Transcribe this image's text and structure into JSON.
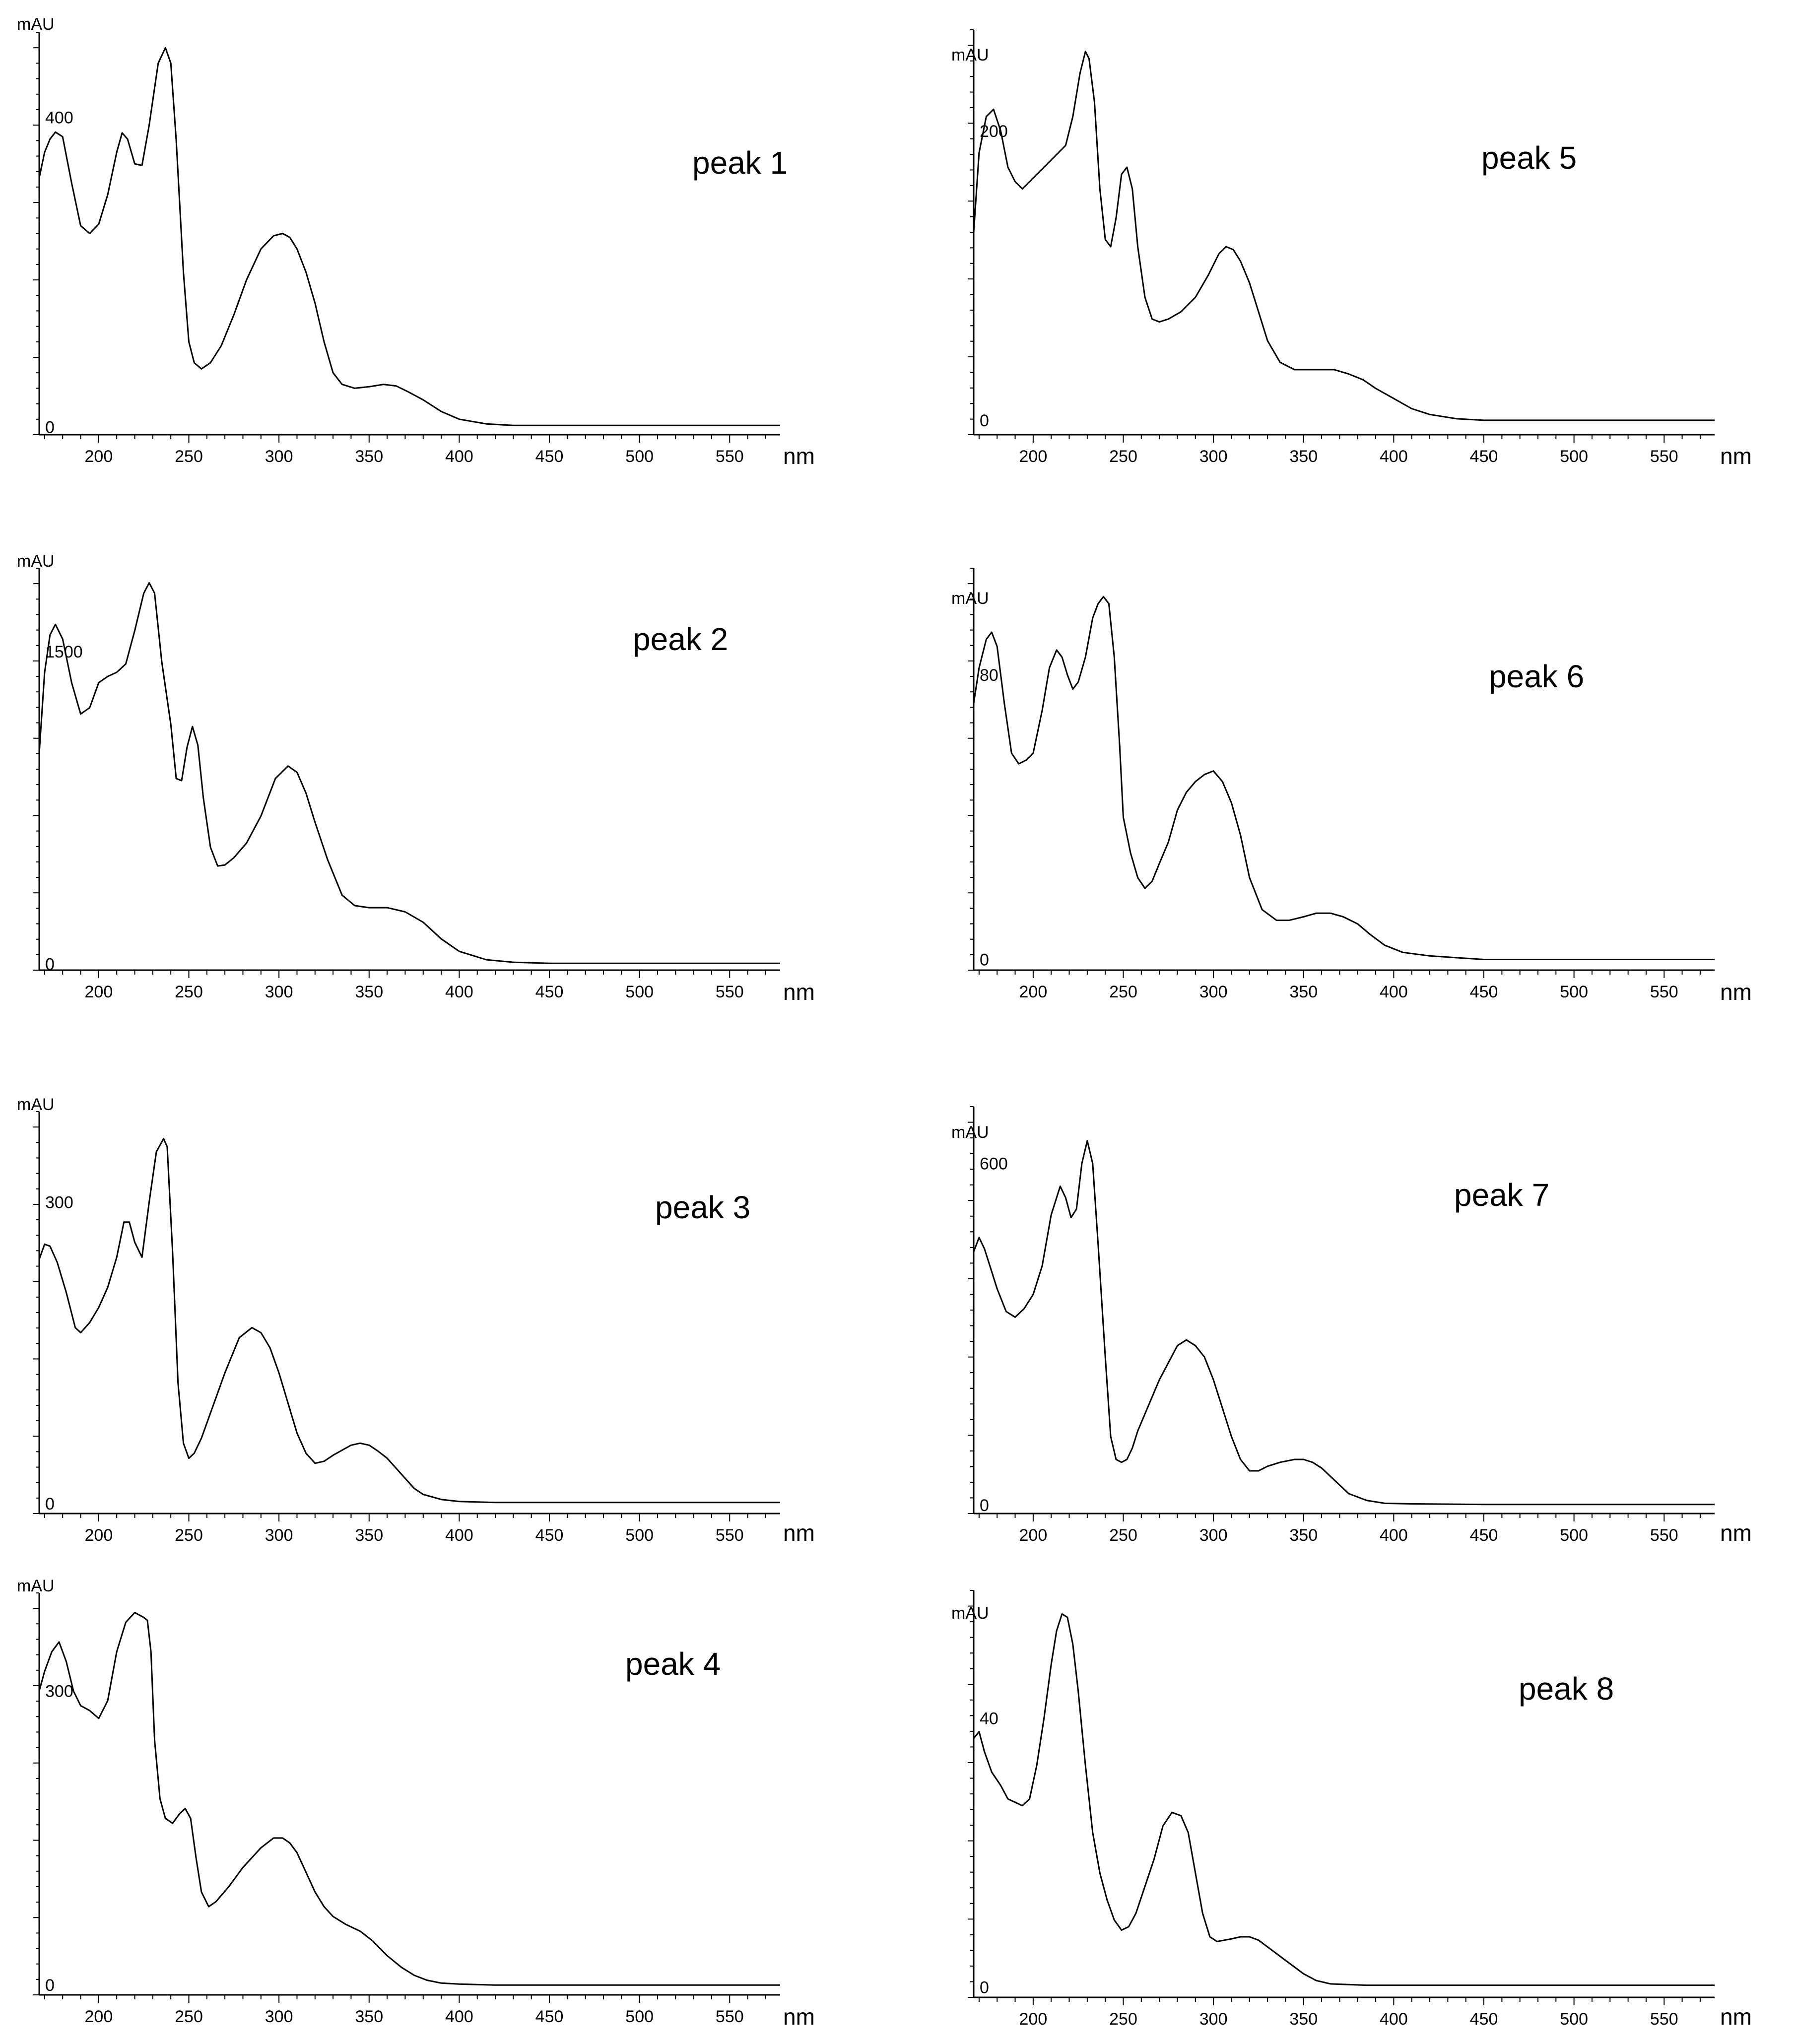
{
  "chart_data": [
    {
      "type": "line",
      "annotation": "peak 1",
      "ylabel": "mAU",
      "xlabel": "nm",
      "x_ticks": [
        200,
        250,
        300,
        350,
        400,
        450,
        500,
        550
      ],
      "y_tick_labels": [
        {
          "value": 0,
          "label": "0"
        },
        {
          "value": 400,
          "label": "400"
        }
      ],
      "xlim": [
        167,
        578
      ],
      "ylim": [
        -10,
        510
      ],
      "series": [
        {
          "x": [
            167,
            170,
            173,
            176,
            180,
            185,
            190,
            195,
            200,
            205,
            210,
            213,
            216,
            220,
            224,
            228,
            233,
            237,
            240,
            243,
            247,
            250,
            253,
            257,
            262,
            268,
            275,
            282,
            290,
            297,
            302,
            306,
            310,
            315,
            320,
            325,
            330,
            335,
            342,
            350,
            358,
            365,
            372,
            380,
            390,
            400,
            415,
            430,
            450,
            500,
            550,
            578
          ],
          "y": [
            322,
            355,
            372,
            381,
            375,
            315,
            260,
            250,
            262,
            300,
            355,
            380,
            372,
            340,
            338,
            390,
            470,
            490,
            470,
            370,
            200,
            110,
            83,
            75,
            83,
            105,
            145,
            190,
            230,
            247,
            250,
            245,
            230,
            200,
            160,
            110,
            70,
            55,
            50,
            52,
            55,
            53,
            45,
            35,
            20,
            10,
            4,
            2,
            2,
            2,
            2,
            2
          ]
        }
      ]
    },
    {
      "type": "line",
      "annotation": "peak 2",
      "ylabel": "mAU",
      "xlabel": "nm",
      "x_ticks": [
        200,
        250,
        300,
        350,
        400,
        450,
        500,
        550
      ],
      "y_tick_labels": [
        {
          "value": 0,
          "label": "0"
        },
        {
          "value": 1500,
          "label": "1500"
        }
      ],
      "xlim": [
        167,
        578
      ],
      "ylim": [
        -30,
        1900
      ],
      "series": [
        {
          "x": [
            167,
            170,
            173,
            176,
            180,
            185,
            190,
            195,
            200,
            205,
            210,
            215,
            220,
            225,
            228,
            231,
            235,
            240,
            243,
            246,
            249,
            252,
            255,
            258,
            262,
            266,
            270,
            275,
            282,
            290,
            298,
            305,
            310,
            315,
            320,
            327,
            335,
            342,
            350,
            360,
            370,
            380,
            390,
            400,
            415,
            430,
            450,
            500,
            550,
            578
          ],
          "y": [
            1010,
            1400,
            1580,
            1630,
            1560,
            1350,
            1200,
            1230,
            1350,
            1380,
            1400,
            1440,
            1600,
            1780,
            1830,
            1780,
            1450,
            1150,
            890,
            880,
            1040,
            1140,
            1050,
            800,
            560,
            470,
            475,
            510,
            580,
            710,
            890,
            950,
            920,
            820,
            680,
            500,
            330,
            280,
            270,
            270,
            250,
            200,
            120,
            60,
            20,
            8,
            3,
            3,
            3,
            3
          ]
        }
      ]
    },
    {
      "type": "line",
      "annotation": "peak 3",
      "ylabel": "mAU",
      "xlabel": "nm",
      "x_ticks": [
        200,
        250,
        300,
        350,
        400,
        450,
        500,
        550
      ],
      "y_tick_labels": [
        {
          "value": 0,
          "label": "0"
        },
        {
          "value": 300,
          "label": "300"
        }
      ],
      "xlim": [
        167,
        578
      ],
      "ylim": [
        -10,
        390
      ],
      "series": [
        {
          "x": [
            167,
            170,
            173,
            177,
            182,
            187,
            190,
            195,
            200,
            205,
            210,
            214,
            217,
            220,
            224,
            228,
            232,
            236,
            238,
            241,
            244,
            247,
            250,
            253,
            257,
            262,
            270,
            278,
            285,
            290,
            295,
            300,
            305,
            310,
            315,
            320,
            325,
            330,
            340,
            345,
            350,
            355,
            360,
            365,
            370,
            375,
            380,
            390,
            400,
            420,
            450,
            500,
            550,
            578
          ],
          "y": [
            243,
            258,
            256,
            240,
            210,
            175,
            170,
            180,
            195,
            215,
            245,
            280,
            280,
            260,
            245,
            300,
            350,
            363,
            355,
            250,
            120,
            60,
            45,
            50,
            65,
            90,
            130,
            165,
            175,
            170,
            155,
            130,
            100,
            70,
            50,
            40,
            42,
            48,
            58,
            60,
            58,
            52,
            45,
            35,
            25,
            15,
            9,
            4,
            2,
            1,
            1,
            1,
            1,
            1
          ]
        }
      ]
    },
    {
      "type": "line",
      "annotation": "peak 4",
      "ylabel": "mAU",
      "xlabel": "nm",
      "x_ticks": [
        200,
        250,
        300,
        350,
        400,
        450,
        500,
        550
      ],
      "y_tick_labels": [
        {
          "value": 0,
          "label": "0"
        },
        {
          "value": 300,
          "label": "300"
        }
      ],
      "xlim": [
        167,
        578
      ],
      "ylim": [
        -10,
        400
      ],
      "series": [
        {
          "x": [
            167,
            170,
            174,
            178,
            182,
            186,
            190,
            195,
            200,
            205,
            210,
            215,
            220,
            225,
            227,
            229,
            231,
            234,
            237,
            241,
            245,
            248,
            251,
            254,
            257,
            261,
            265,
            272,
            280,
            290,
            297,
            302,
            306,
            310,
            315,
            320,
            325,
            330,
            337,
            345,
            352,
            360,
            368,
            375,
            382,
            390,
            400,
            420,
            450,
            500,
            550,
            578
          ],
          "y": [
            300,
            320,
            340,
            350,
            330,
            300,
            285,
            280,
            272,
            290,
            340,
            370,
            380,
            375,
            372,
            340,
            250,
            190,
            170,
            165,
            175,
            180,
            170,
            130,
            95,
            80,
            85,
            100,
            120,
            140,
            150,
            150,
            145,
            135,
            115,
            95,
            80,
            70,
            62,
            55,
            45,
            30,
            18,
            10,
            5,
            2,
            1,
            0,
            0,
            0,
            0,
            0
          ]
        }
      ]
    },
    {
      "type": "line",
      "annotation": "peak 5",
      "ylabel": "mAU",
      "xlabel": "nm",
      "x_ticks": [
        200,
        250,
        300,
        350,
        400,
        450,
        500,
        550
      ],
      "y_tick_labels": [
        {
          "value": 0,
          "label": "0"
        },
        {
          "value": 200,
          "label": "200"
        }
      ],
      "xlim": [
        167,
        578
      ],
      "ylim": [
        -10,
        270
      ],
      "series": [
        {
          "x": [
            167,
            170,
            174,
            178,
            182,
            186,
            190,
            194,
            198,
            202,
            206,
            210,
            214,
            218,
            222,
            226,
            229,
            231,
            234,
            237,
            240,
            243,
            246,
            249,
            252,
            255,
            258,
            262,
            266,
            270,
            275,
            282,
            290,
            297,
            303,
            307,
            311,
            315,
            320,
            325,
            330,
            337,
            345,
            352,
            360,
            367,
            375,
            383,
            390,
            400,
            410,
            420,
            435,
            450,
            500,
            550,
            578
          ],
          "y": [
            130,
            185,
            210,
            215,
            200,
            175,
            165,
            160,
            165,
            170,
            175,
            180,
            185,
            190,
            210,
            240,
            255,
            250,
            220,
            160,
            125,
            120,
            140,
            170,
            175,
            160,
            120,
            85,
            70,
            68,
            70,
            75,
            85,
            100,
            115,
            120,
            118,
            110,
            95,
            75,
            55,
            40,
            35,
            35,
            35,
            35,
            32,
            28,
            22,
            15,
            8,
            4,
            1,
            0,
            0,
            0,
            0
          ]
        }
      ]
    },
    {
      "type": "line",
      "annotation": "peak 6",
      "ylabel": "mAU",
      "xlabel": "nm",
      "x_ticks": [
        200,
        250,
        300,
        350,
        400,
        450,
        500,
        550
      ],
      "y_tick_labels": [
        {
          "value": 0,
          "label": "0"
        },
        {
          "value": 80,
          "label": "80"
        }
      ],
      "xlim": [
        167,
        578
      ],
      "ylim": [
        -3,
        110
      ],
      "series": [
        {
          "x": [
            167,
            170,
            174,
            177,
            180,
            184,
            188,
            192,
            196,
            200,
            205,
            209,
            213,
            216,
            219,
            222,
            225,
            229,
            233,
            236,
            239,
            242,
            245,
            248,
            250,
            254,
            258,
            262,
            266,
            270,
            275,
            280,
            285,
            290,
            295,
            300,
            305,
            310,
            315,
            320,
            327,
            335,
            342,
            350,
            357,
            365,
            372,
            380,
            387,
            395,
            405,
            420,
            450,
            500,
            550,
            578
          ],
          "y": [
            72,
            82,
            90,
            92,
            88,
            72,
            58,
            55,
            56,
            58,
            70,
            82,
            87,
            85,
            80,
            76,
            78,
            85,
            96,
            100,
            102,
            100,
            85,
            60,
            40,
            30,
            23,
            20,
            22,
            27,
            33,
            42,
            47,
            50,
            52,
            53,
            50,
            44,
            35,
            23,
            14,
            11,
            11,
            12,
            13,
            13,
            12,
            10,
            7,
            4,
            2,
            1,
            0,
            0,
            0,
            0
          ]
        }
      ]
    },
    {
      "type": "line",
      "annotation": "peak 7",
      "ylabel": "mAU",
      "xlabel": "nm",
      "x_ticks": [
        200,
        250,
        300,
        350,
        400,
        450,
        500,
        550
      ],
      "y_tick_labels": [
        {
          "value": 0,
          "label": "0"
        },
        {
          "value": 600,
          "label": "600"
        }
      ],
      "xlim": [
        167,
        578
      ],
      "ylim": [
        -15,
        700
      ],
      "series": [
        {
          "x": [
            167,
            170,
            173,
            176,
            180,
            185,
            190,
            195,
            200,
            205,
            210,
            215,
            218,
            221,
            224,
            227,
            230,
            233,
            236,
            240,
            243,
            246,
            249,
            252,
            255,
            258,
            262,
            270,
            280,
            285,
            290,
            295,
            300,
            305,
            310,
            315,
            320,
            325,
            330,
            337,
            345,
            350,
            355,
            360,
            365,
            370,
            375,
            385,
            395,
            410,
            450,
            500,
            550,
            578
          ],
          "y": [
            445,
            470,
            450,
            420,
            380,
            340,
            330,
            345,
            370,
            420,
            510,
            560,
            540,
            505,
            520,
            600,
            640,
            600,
            460,
            260,
            120,
            80,
            75,
            80,
            100,
            130,
            160,
            220,
            280,
            290,
            280,
            260,
            220,
            170,
            120,
            80,
            60,
            60,
            68,
            75,
            80,
            80,
            75,
            65,
            50,
            35,
            20,
            8,
            3,
            2,
            1,
            1,
            1,
            1
          ]
        }
      ]
    },
    {
      "type": "line",
      "annotation": "peak 8",
      "ylabel": "mAU",
      "xlabel": "nm",
      "x_ticks": [
        200,
        250,
        300,
        350,
        400,
        450,
        500,
        550
      ],
      "y_tick_labels": [
        {
          "value": 0,
          "label": "0"
        },
        {
          "value": 40,
          "label": "40"
        }
      ],
      "xlim": [
        167,
        578
      ],
      "ylim": [
        -1.5,
        59
      ],
      "series": [
        {
          "x": [
            167,
            170,
            173,
            177,
            182,
            186,
            190,
            194,
            198,
            202,
            206,
            210,
            213,
            216,
            219,
            222,
            225,
            229,
            233,
            237,
            241,
            245,
            249,
            253,
            257,
            262,
            267,
            272,
            277,
            282,
            286,
            290,
            294,
            298,
            302,
            306,
            310,
            315,
            320,
            325,
            330,
            335,
            340,
            345,
            350,
            357,
            365,
            375,
            385,
            400,
            420,
            450,
            500,
            550,
            578
          ],
          "y": [
            37,
            38,
            35,
            32,
            30,
            28,
            27.5,
            27,
            28,
            33,
            40,
            48,
            53,
            55.5,
            55,
            51,
            44,
            33,
            23,
            17,
            13,
            10,
            8.5,
            9,
            11,
            15,
            19,
            24,
            26,
            25.5,
            23,
            17,
            11,
            7.5,
            6.8,
            7,
            7.2,
            7.5,
            7.5,
            7,
            6,
            5,
            4,
            3,
            2,
            1,
            0.5,
            0.4,
            0.3,
            0.3,
            0.3,
            0.3,
            0.3,
            0.3,
            0.3
          ]
        }
      ]
    }
  ]
}
